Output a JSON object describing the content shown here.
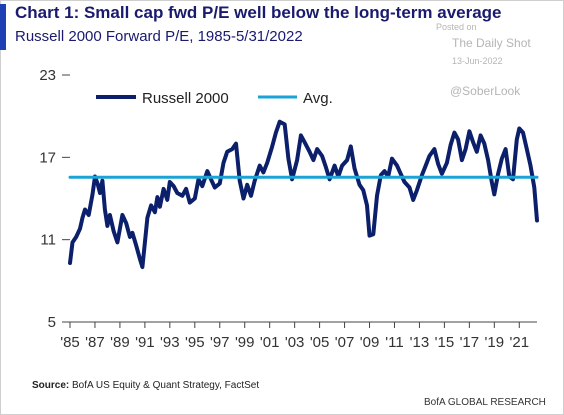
{
  "header": {
    "title": "Chart 1: Small cap fwd P/E well below the long-term average",
    "subtitle": "Russell 2000 Forward P/E, 1985-5/31/2022"
  },
  "watermark": {
    "posted": "Posted on",
    "site": "The Daily Shot",
    "date": "13-Jun-2022",
    "handle": "@SoberLook"
  },
  "source": {
    "label": "Source:",
    "text": "BofA US Equity  & Quant Strategy, FactSet"
  },
  "footer": "BofA GLOBAL RESEARCH",
  "colors": {
    "accent": "#1f3fb4",
    "series_line": "#0b1f6b",
    "avg_line": "#1ba3d6"
  },
  "chart_data": {
    "type": "line",
    "title": "Chart 1: Small cap fwd P/E well below the long-term average",
    "subtitle": "Russell 2000 Forward P/E, 1985-5/31/2022",
    "xlabel": "",
    "ylabel": "",
    "xlim": [
      1985,
      2022.42
    ],
    "ylim": [
      5,
      23
    ],
    "yticks": [
      5,
      11,
      17,
      23
    ],
    "xticks": [
      1985,
      1987,
      1989,
      1991,
      1993,
      1995,
      1997,
      1999,
      2001,
      2003,
      2005,
      2007,
      2009,
      2011,
      2013,
      2015,
      2017,
      2019,
      2021
    ],
    "xtick_labels": [
      "'85",
      "'87",
      "'89",
      "'91",
      "'93",
      "'95",
      "'97",
      "'99",
      "'01",
      "'03",
      "'05",
      "'07",
      "'09",
      "'11",
      "'13",
      "'15",
      "'17",
      "'19",
      "'21"
    ],
    "grid": false,
    "legend_position": "top-left",
    "series": [
      {
        "name": "Russell 2000",
        "x": [
          1985.0,
          1985.2,
          1985.5,
          1985.8,
          1986.0,
          1986.2,
          1986.5,
          1986.8,
          1987.0,
          1987.2,
          1987.4,
          1987.6,
          1987.8,
          1988.0,
          1988.2,
          1988.5,
          1988.8,
          1989.0,
          1989.2,
          1989.5,
          1989.8,
          1990.0,
          1990.3,
          1990.6,
          1990.8,
          1991.0,
          1991.2,
          1991.5,
          1991.8,
          1992.0,
          1992.2,
          1992.5,
          1992.8,
          1993.0,
          1993.3,
          1993.6,
          1994.0,
          1994.3,
          1994.6,
          1995.0,
          1995.3,
          1995.6,
          1996.0,
          1996.3,
          1996.6,
          1997.0,
          1997.3,
          1997.6,
          1998.0,
          1998.3,
          1998.6,
          1998.9,
          1999.2,
          1999.5,
          1999.8,
          2000.2,
          2000.5,
          2000.8,
          2001.2,
          2001.5,
          2001.8,
          2002.2,
          2002.5,
          2002.8,
          2003.2,
          2003.5,
          2003.8,
          2004.2,
          2004.5,
          2004.8,
          2005.2,
          2005.5,
          2005.8,
          2006.2,
          2006.5,
          2006.8,
          2007.2,
          2007.5,
          2007.8,
          2008.2,
          2008.5,
          2008.8,
          2009.0,
          2009.3,
          2009.6,
          2009.9,
          2010.2,
          2010.5,
          2010.8,
          2011.2,
          2011.5,
          2011.8,
          2012.2,
          2012.5,
          2012.8,
          2013.2,
          2013.5,
          2013.8,
          2014.2,
          2014.5,
          2014.8,
          2015.2,
          2015.5,
          2015.8,
          2016.1,
          2016.4,
          2016.7,
          2017.0,
          2017.3,
          2017.6,
          2017.9,
          2018.2,
          2018.5,
          2018.8,
          2019.0,
          2019.3,
          2019.6,
          2019.9,
          2020.2,
          2020.5,
          2020.8,
          2021.0,
          2021.3,
          2021.6,
          2021.9,
          2022.2,
          2022.42
        ],
        "values": [
          9.3,
          10.8,
          11.2,
          11.8,
          12.6,
          13.2,
          12.8,
          14.3,
          15.6,
          15.1,
          14.4,
          15.3,
          13.2,
          12.0,
          12.8,
          11.6,
          10.8,
          11.8,
          12.8,
          12.2,
          11.2,
          11.5,
          10.6,
          9.6,
          9.0,
          10.8,
          12.6,
          13.5,
          13.0,
          14.1,
          13.4,
          14.7,
          13.9,
          15.2,
          14.9,
          14.4,
          14.2,
          14.7,
          13.7,
          14.0,
          15.4,
          14.9,
          16.0,
          15.4,
          14.8,
          15.1,
          16.6,
          17.4,
          17.6,
          18.0,
          15.3,
          14.0,
          15.0,
          14.2,
          15.3,
          16.4,
          15.9,
          16.6,
          17.8,
          18.8,
          19.6,
          19.4,
          16.9,
          15.4,
          16.8,
          18.6,
          18.1,
          17.4,
          16.8,
          17.6,
          17.1,
          16.3,
          15.4,
          16.4,
          15.6,
          16.4,
          16.8,
          17.8,
          16.2,
          15.0,
          14.6,
          13.5,
          11.3,
          11.4,
          14.2,
          15.7,
          16.0,
          15.6,
          16.9,
          16.4,
          15.8,
          15.2,
          14.8,
          13.9,
          14.6,
          15.7,
          16.4,
          17.1,
          17.6,
          16.5,
          15.8,
          16.6,
          17.9,
          18.8,
          18.3,
          16.8,
          17.6,
          18.9,
          18.1,
          17.4,
          18.6,
          18.0,
          16.8,
          15.2,
          14.3,
          15.8,
          16.9,
          17.6,
          15.6,
          15.4,
          18.3,
          19.1,
          18.8,
          17.6,
          16.4,
          14.8,
          12.4
        ]
      },
      {
        "name": "Avg.",
        "x": [
          1985,
          2022.42
        ],
        "values": [
          15.55,
          15.55
        ]
      }
    ]
  }
}
